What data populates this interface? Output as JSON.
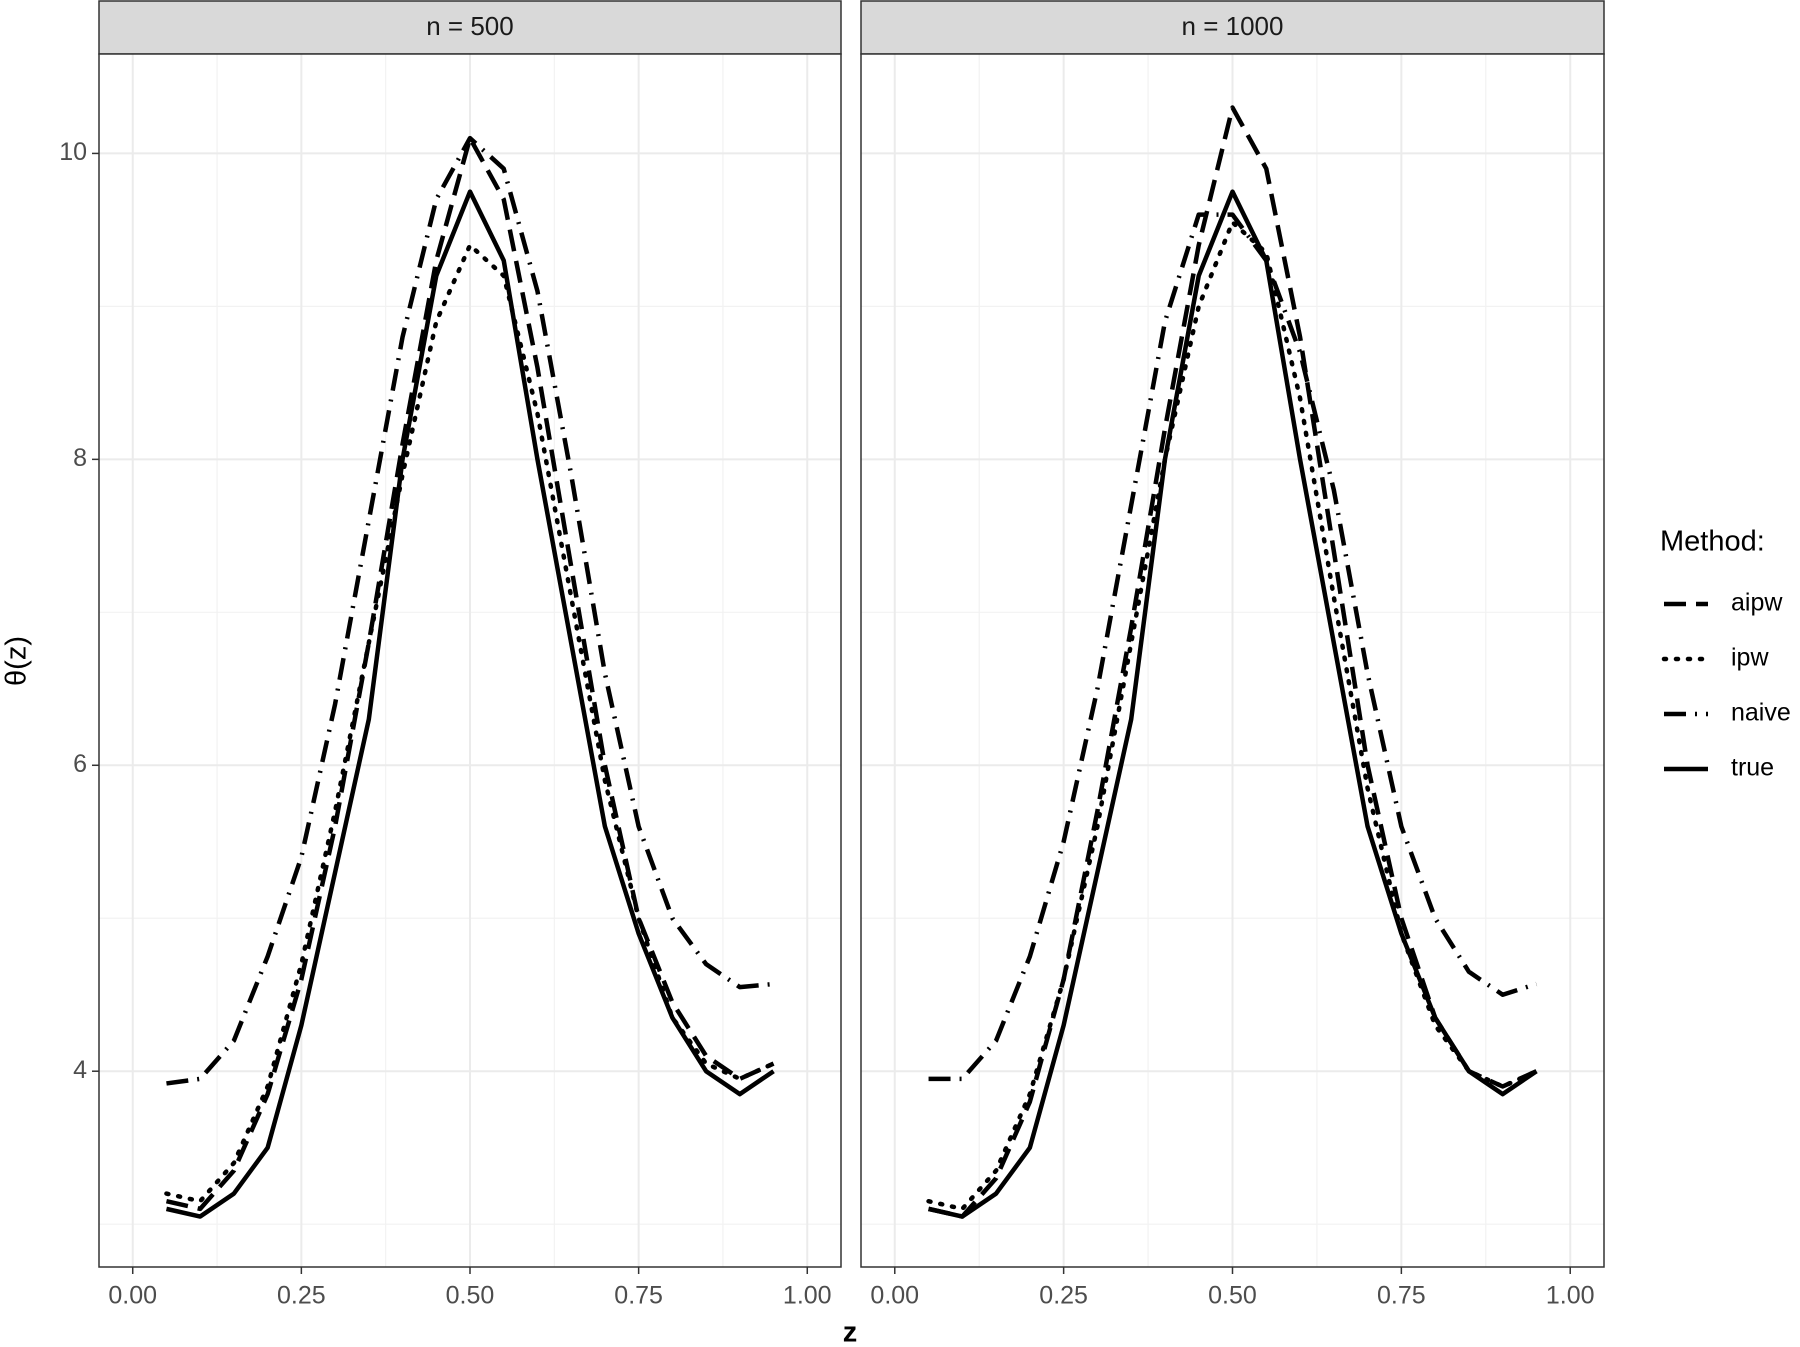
{
  "shared": {
    "xlabel": "z",
    "ylabel": "θ(z)",
    "legend_title": "Method:",
    "legend_position": "right"
  },
  "chart_data": [
    {
      "type": "line",
      "title": "n = 500",
      "x": [
        0.05,
        0.1,
        0.15,
        0.2,
        0.25,
        0.3,
        0.35,
        0.4,
        0.45,
        0.5,
        0.55,
        0.6,
        0.65,
        0.7,
        0.75,
        0.8,
        0.85,
        0.9,
        0.95
      ],
      "series": [
        {
          "name": "aipw",
          "color": "#000000",
          "linestyle": "dashed",
          "values": [
            3.15,
            3.1,
            3.35,
            3.85,
            4.6,
            5.6,
            6.8,
            8.1,
            9.3,
            10.1,
            9.7,
            8.6,
            7.3,
            6.0,
            5.0,
            4.45,
            4.1,
            3.95,
            4.05
          ]
        },
        {
          "name": "ipw",
          "color": "#000000",
          "linestyle": "dotted",
          "values": [
            3.2,
            3.15,
            3.4,
            3.9,
            4.7,
            5.7,
            6.8,
            7.9,
            8.9,
            9.4,
            9.2,
            8.3,
            7.1,
            5.9,
            5.0,
            4.35,
            4.05,
            3.95,
            4.05
          ]
        },
        {
          "name": "naive",
          "color": "#000000",
          "linestyle": "dashdot",
          "values": [
            3.92,
            3.95,
            4.2,
            4.75,
            5.4,
            6.4,
            7.6,
            8.8,
            9.7,
            10.1,
            9.9,
            9.1,
            7.9,
            6.6,
            5.6,
            5.0,
            4.7,
            4.55,
            4.57
          ]
        },
        {
          "name": "true",
          "color": "#000000",
          "linestyle": "solid",
          "values": [
            3.1,
            3.05,
            3.2,
            3.5,
            4.3,
            5.3,
            6.3,
            8.0,
            9.2,
            9.75,
            9.3,
            8.0,
            6.8,
            5.6,
            4.9,
            4.35,
            4.0,
            3.85,
            4.0
          ]
        }
      ],
      "xlim": [
        -0.05,
        1.05
      ],
      "ylim": [
        2.72,
        10.65
      ],
      "xticks": [
        {
          "value": 0,
          "label": "0.00"
        },
        {
          "value": 0.25,
          "label": "0.25"
        },
        {
          "value": 0.5,
          "label": "0.50"
        },
        {
          "value": 0.75,
          "label": "0.75"
        },
        {
          "value": 1,
          "label": "1.00"
        }
      ],
      "yticks": [
        4,
        6,
        8,
        10
      ],
      "grid": true
    },
    {
      "type": "line",
      "title": "n = 1000",
      "x": [
        0.05,
        0.1,
        0.15,
        0.2,
        0.25,
        0.3,
        0.35,
        0.4,
        0.45,
        0.5,
        0.55,
        0.6,
        0.65,
        0.7,
        0.75,
        0.8,
        0.85,
        0.9,
        0.95
      ],
      "series": [
        {
          "name": "aipw",
          "color": "#000000",
          "linestyle": "dashed",
          "values": [
            3.1,
            3.05,
            3.3,
            3.8,
            4.6,
            5.7,
            6.9,
            8.2,
            9.4,
            10.3,
            9.9,
            8.8,
            7.4,
            6.0,
            5.0,
            4.35,
            4.0,
            3.9,
            4.0
          ]
        },
        {
          "name": "ipw",
          "color": "#000000",
          "linestyle": "dotted",
          "values": [
            3.15,
            3.1,
            3.35,
            3.85,
            4.6,
            5.6,
            6.8,
            8.0,
            9.0,
            9.55,
            9.35,
            8.4,
            7.1,
            5.85,
            4.9,
            4.3,
            4.0,
            3.9,
            4.0
          ]
        },
        {
          "name": "naive",
          "color": "#000000",
          "linestyle": "dashdot",
          "values": [
            3.95,
            3.95,
            4.2,
            4.75,
            5.5,
            6.5,
            7.7,
            8.9,
            9.6,
            9.6,
            9.3,
            8.7,
            7.8,
            6.6,
            5.6,
            5.0,
            4.65,
            4.5,
            4.57
          ]
        },
        {
          "name": "true",
          "color": "#000000",
          "linestyle": "solid",
          "values": [
            3.1,
            3.05,
            3.2,
            3.5,
            4.3,
            5.3,
            6.3,
            8.0,
            9.2,
            9.75,
            9.3,
            8.0,
            6.8,
            5.6,
            4.9,
            4.35,
            4.0,
            3.85,
            4.0
          ]
        }
      ],
      "xlim": [
        -0.05,
        1.05
      ],
      "ylim": [
        2.72,
        10.65
      ],
      "xticks": [
        {
          "value": 0,
          "label": "0.00"
        },
        {
          "value": 0.25,
          "label": "0.25"
        },
        {
          "value": 0.5,
          "label": "0.50"
        },
        {
          "value": 0.75,
          "label": "0.75"
        },
        {
          "value": 1,
          "label": "1.00"
        }
      ],
      "yticks": [
        4,
        6,
        8,
        10
      ],
      "grid": true
    }
  ]
}
